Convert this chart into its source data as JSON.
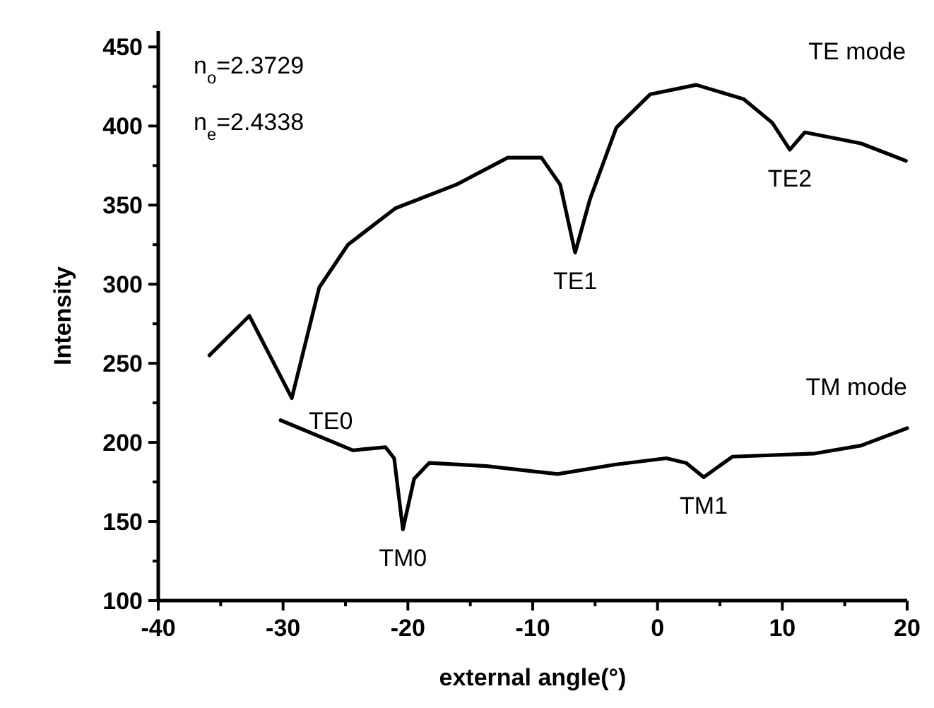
{
  "chart_data": {
    "type": "line",
    "xlabel": "external angle(°)",
    "ylabel": "Intensity",
    "xlim": [
      -40,
      20
    ],
    "ylim": [
      100,
      460
    ],
    "xticks": [
      -40,
      {
        "value": -35,
        "label": null
      },
      -30,
      {
        "value": -25,
        "label": null
      },
      -20,
      {
        "value": -15,
        "label": null
      },
      -10,
      {
        "value": -5,
        "label": null
      },
      0,
      {
        "value": 5,
        "label": null
      },
      10,
      {
        "value": 15,
        "label": null
      },
      20
    ],
    "yticks": [
      100,
      {
        "value": 125,
        "label": null
      },
      150,
      {
        "value": 175,
        "label": null
      },
      200,
      {
        "value": 225,
        "label": null
      },
      250,
      {
        "value": 275,
        "label": null
      },
      300,
      {
        "value": 325,
        "label": null
      },
      350,
      {
        "value": 375,
        "label": null
      },
      400,
      {
        "value": 425,
        "label": null
      },
      450
    ],
    "grid": false,
    "legend": false,
    "marker": "none",
    "line_style": "solid",
    "series": [
      {
        "name": "TE mode",
        "color": "#000000",
        "x": [
          -35.9,
          -32.7,
          -29.3,
          -27.1,
          -24.8,
          -21.0,
          -16.1,
          -12,
          -9.3,
          -7.8,
          -6.6,
          -5.4,
          -3.3,
          -0.6,
          3.1,
          6.9,
          9.2,
          10.6,
          11.8,
          16.3,
          19.9
        ],
        "values": [
          255,
          280,
          228,
          298,
          325,
          348,
          363,
          380,
          380,
          363,
          320,
          354,
          399,
          420,
          426,
          417,
          402,
          385,
          396,
          389,
          378
        ]
      },
      {
        "name": "TM mode",
        "color": "#000000",
        "x": [
          -30.2,
          -24.4,
          -21.8,
          -21.1,
          -20.4,
          -19.5,
          -18.3,
          -13.7,
          -8.0,
          -3.4,
          0.7,
          2.3,
          3.7,
          6.0,
          12.6,
          16.3,
          20
        ],
        "values": [
          214,
          195,
          197,
          190,
          145,
          177,
          187,
          185,
          180,
          186,
          190,
          187,
          178,
          191,
          193,
          198,
          209
        ]
      }
    ],
    "annotations": [
      "n$_{o}$=2.3729",
      "n$_{e}$=2.4338",
      {
        "text": "TE0",
        "x": -29.3,
        "y": 228
      },
      {
        "text": "TE1",
        "x": -6.6,
        "y": 320
      },
      {
        "text": "TE2",
        "x": 10.6,
        "y": 385
      },
      {
        "text": "TM0",
        "x": -20.4,
        "y": 145
      },
      {
        "text": "TM1",
        "x": 3.7,
        "y": 178
      }
    ]
  }
}
